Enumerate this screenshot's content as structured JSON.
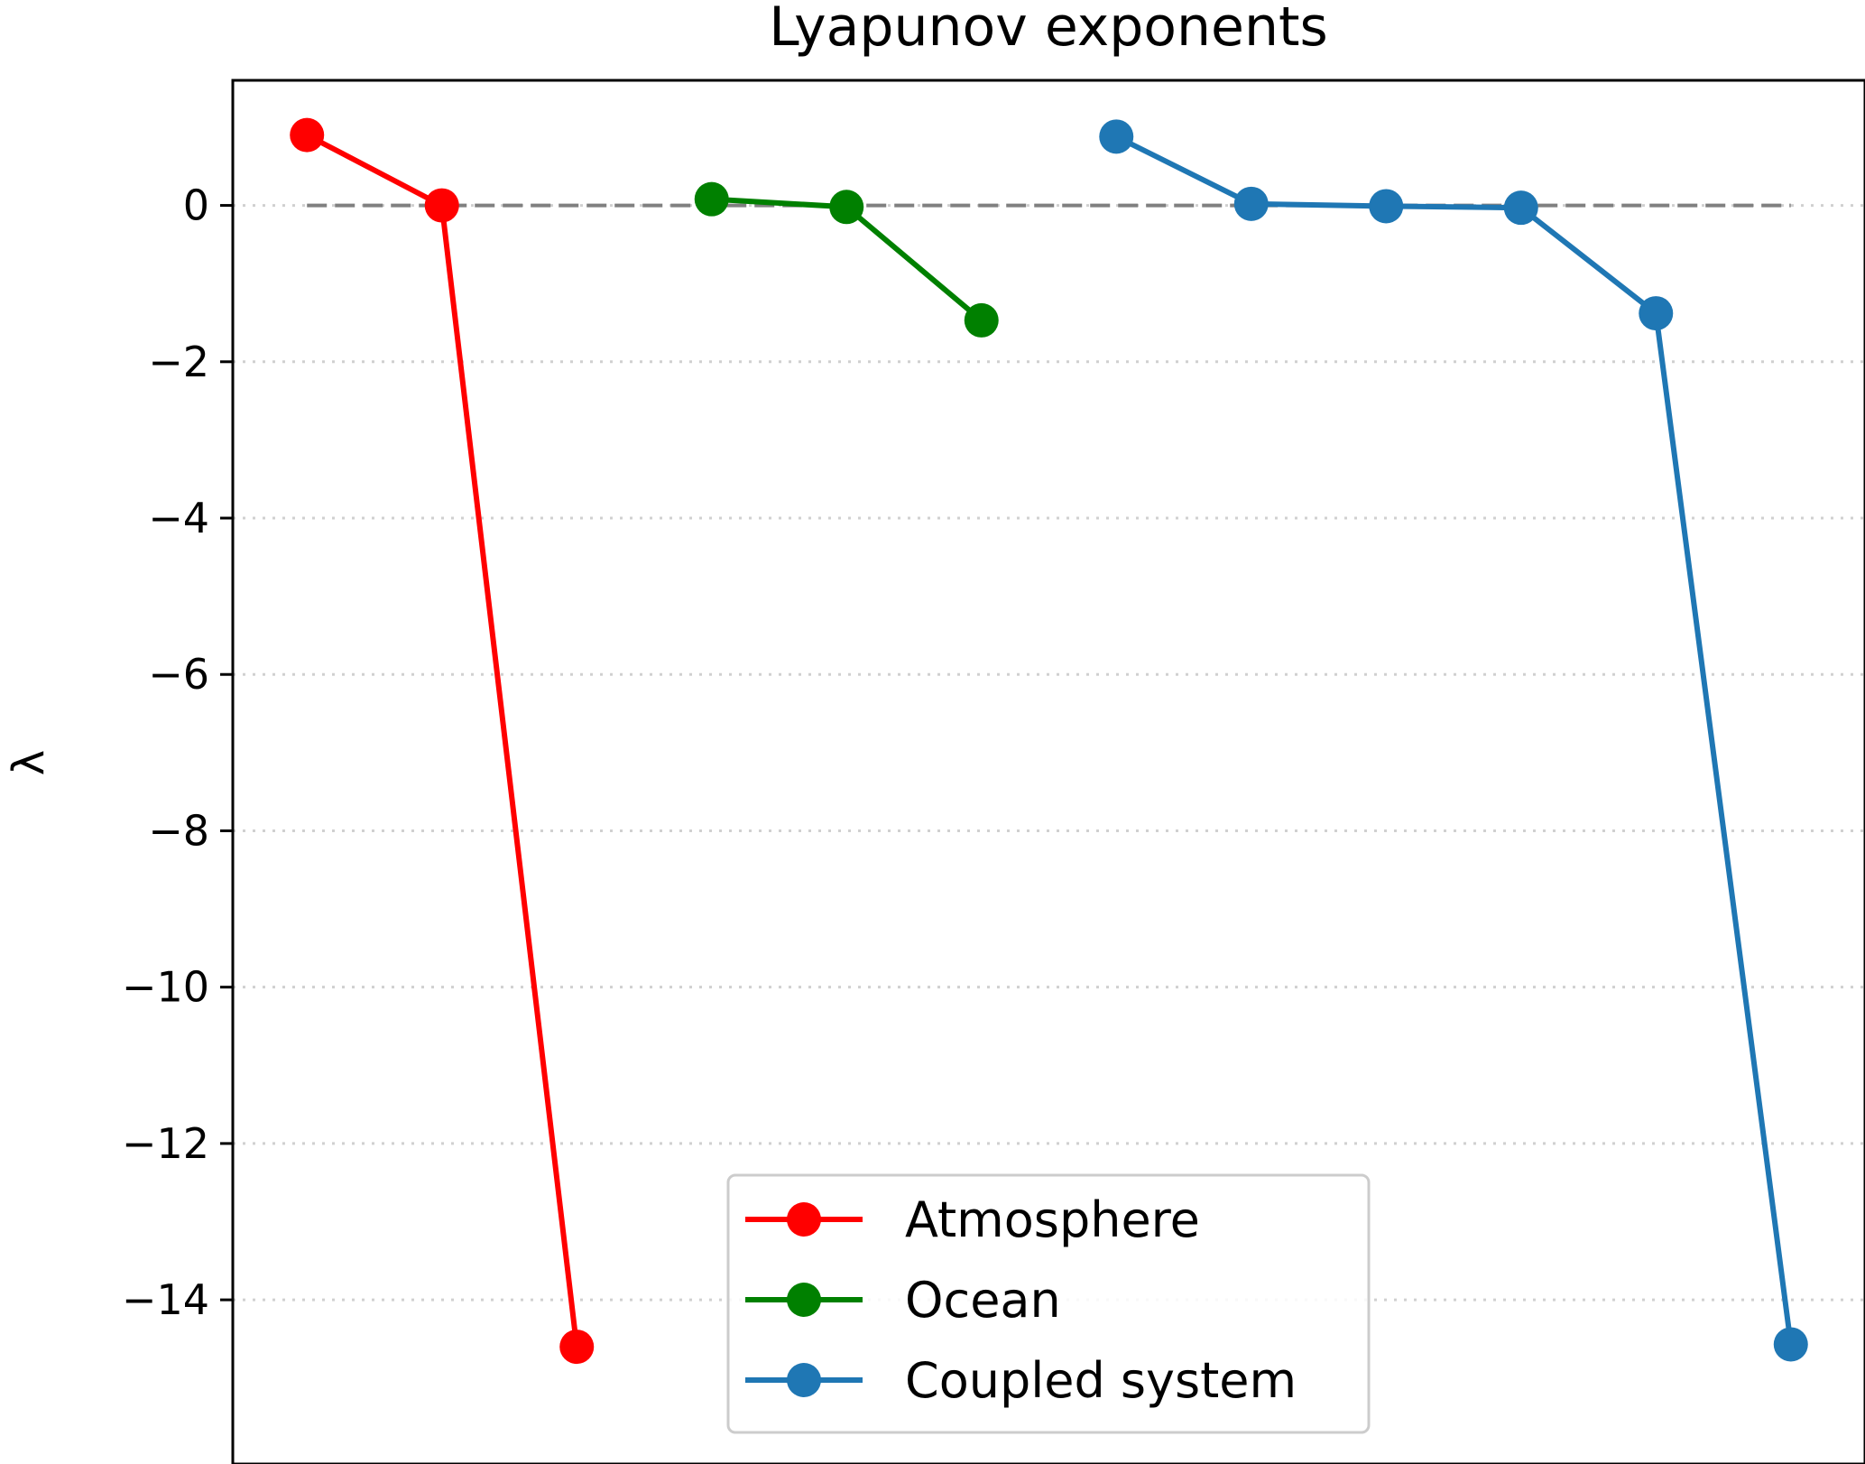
{
  "chart_data": {
    "type": "line",
    "title": "Lyapunov exponents",
    "xlabel": "",
    "ylabel": "λ",
    "ylim": [
      -16.1,
      1.6
    ],
    "xlim": [
      -0.55,
      11.55
    ],
    "yticks": [
      0,
      -2,
      -4,
      -6,
      -8,
      -10,
      -12,
      -14
    ],
    "ytick_labels": [
      "0",
      "−2",
      "−4",
      "−6",
      "−8",
      "−10",
      "−12",
      "−14"
    ],
    "x_ticks_shown": false,
    "grid": {
      "axis": "y",
      "style": "dotted"
    },
    "reference_line": {
      "y": 0,
      "x_range": [
        0,
        11
      ],
      "style": "dashed",
      "color": "#808080"
    },
    "legend_position": "lower center",
    "series": [
      {
        "name": "Atmosphere",
        "color": "#ff0000",
        "x": [
          0,
          1,
          2
        ],
        "values": [
          0.9,
          0.0,
          -14.6
        ]
      },
      {
        "name": "Ocean",
        "color": "#008000",
        "x": [
          3,
          4,
          5
        ],
        "values": [
          0.08,
          -0.02,
          -1.47
        ]
      },
      {
        "name": "Coupled system",
        "color": "#1f77b4",
        "x": [
          6,
          7,
          8,
          9,
          10,
          11
        ],
        "values": [
          0.88,
          0.02,
          -0.01,
          -0.03,
          -1.38,
          -14.57
        ]
      }
    ]
  }
}
